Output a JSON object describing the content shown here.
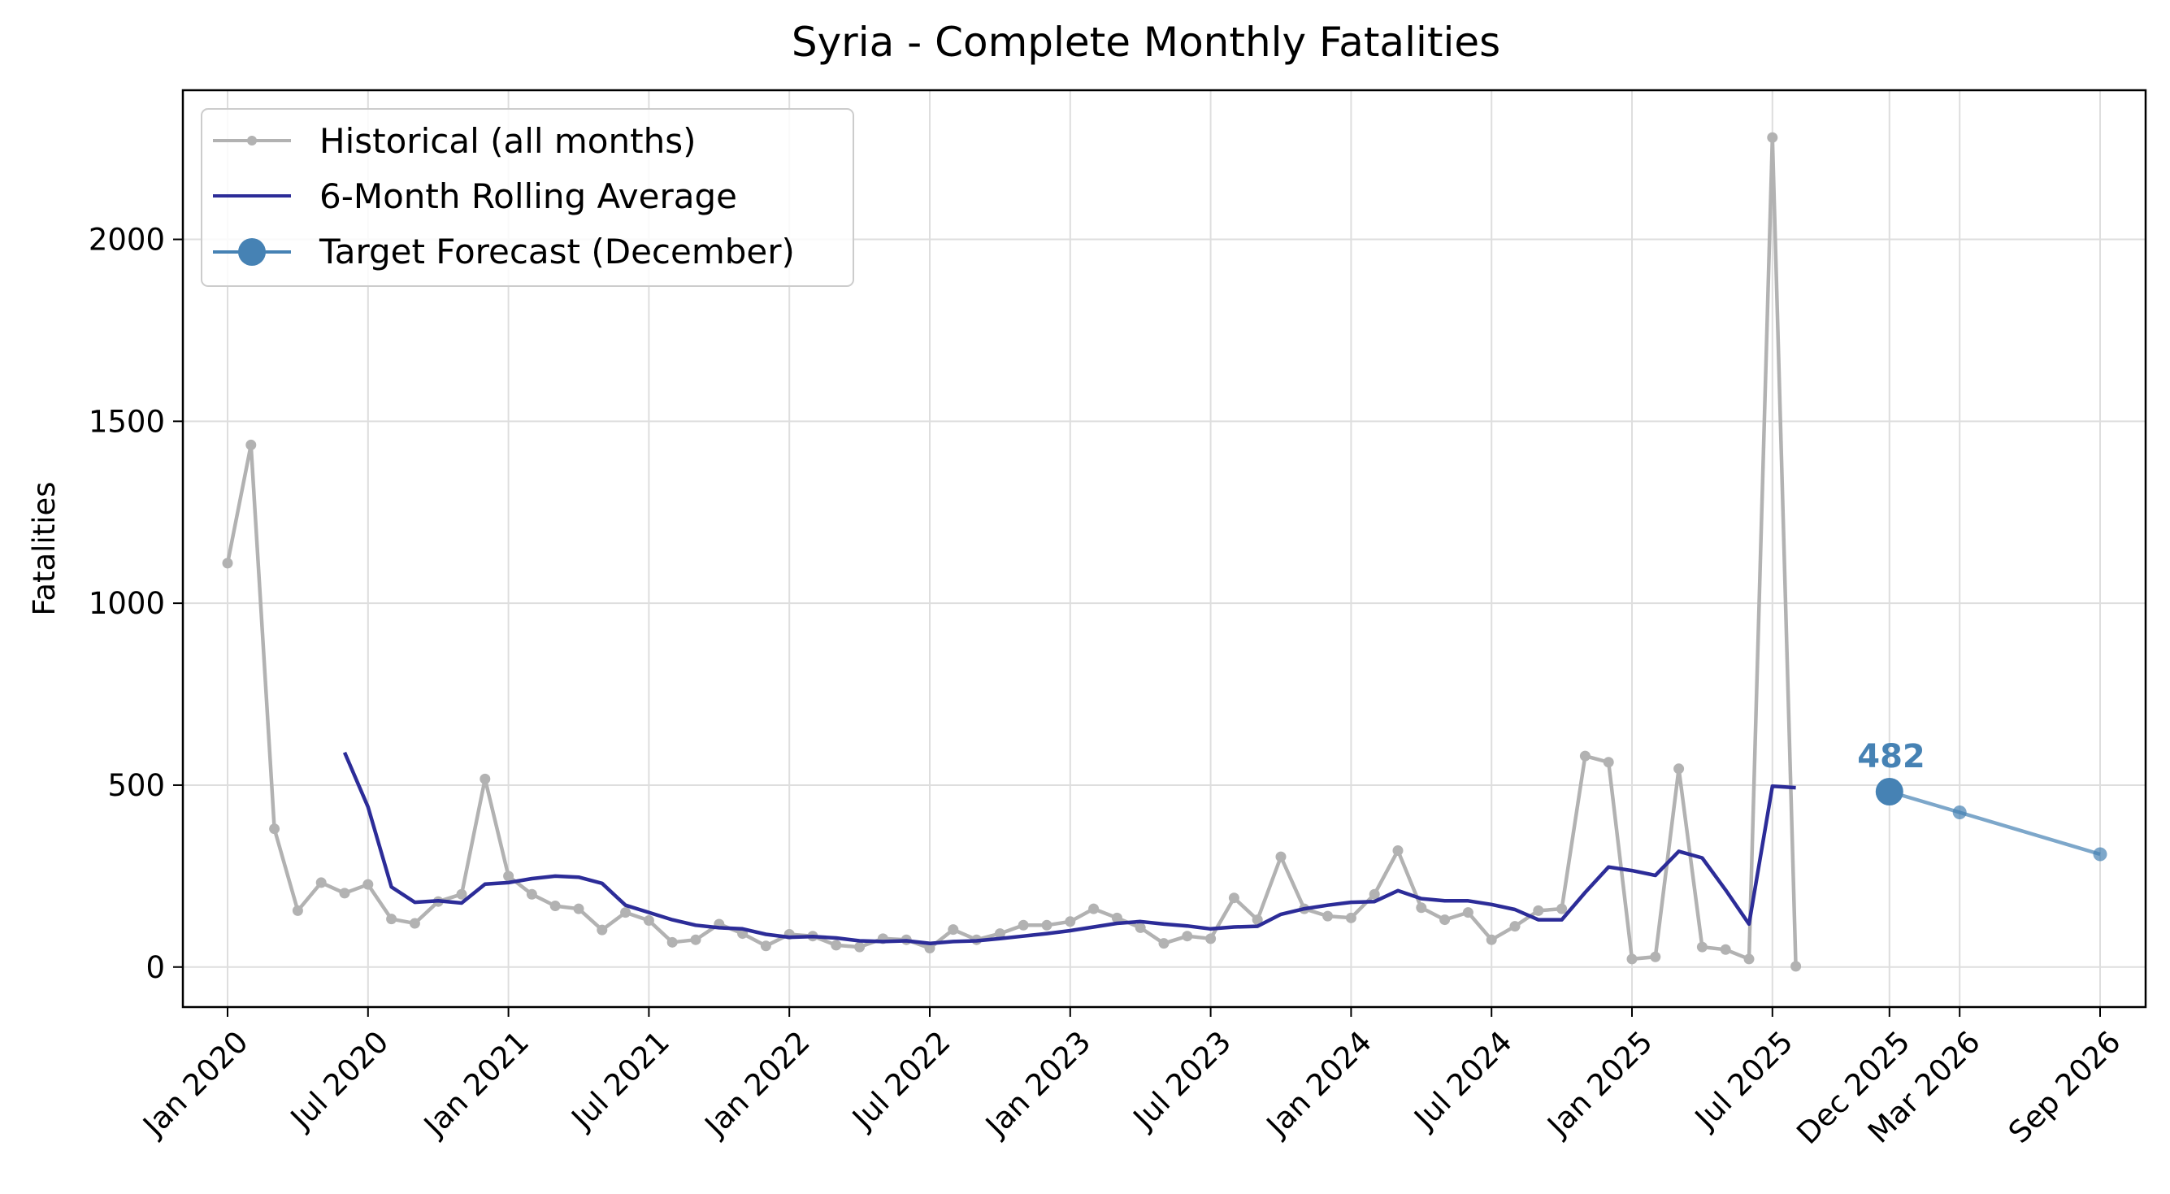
{
  "chart_data": {
    "type": "line",
    "title": "Syria - Complete Monthly Fatalities",
    "xlabel": "",
    "ylabel": "Fatalities",
    "ylim": [
      -110,
      2410
    ],
    "yticks": [
      0,
      500,
      1000,
      1500,
      2000
    ],
    "xticks": [
      {
        "date": "2020-01",
        "label": "Jan 2020"
      },
      {
        "date": "2020-07",
        "label": "Jul 2020"
      },
      {
        "date": "2021-01",
        "label": "Jan 2021"
      },
      {
        "date": "2021-07",
        "label": "Jul 2021"
      },
      {
        "date": "2022-01",
        "label": "Jan 2022"
      },
      {
        "date": "2022-07",
        "label": "Jul 2022"
      },
      {
        "date": "2023-01",
        "label": "Jan 2023"
      },
      {
        "date": "2023-07",
        "label": "Jul 2023"
      },
      {
        "date": "2024-01",
        "label": "Jan 2024"
      },
      {
        "date": "2024-07",
        "label": "Jul 2024"
      },
      {
        "date": "2025-01",
        "label": "Jan 2025"
      },
      {
        "date": "2025-07",
        "label": "Jul 2025"
      },
      {
        "date": "2025-12",
        "label": "Dec 2025"
      },
      {
        "date": "2026-03",
        "label": "Mar 2026"
      },
      {
        "date": "2026-09",
        "label": "Sep 2026"
      }
    ],
    "grid": true,
    "legend_position": "top-left",
    "series": [
      {
        "name": "Historical (all months)",
        "color": "#b2b2b2",
        "style": "line-with-dots",
        "points": [
          [
            "2020-01",
            1110
          ],
          [
            "2020-02",
            1435
          ],
          [
            "2020-03",
            380
          ],
          [
            "2020-04",
            155
          ],
          [
            "2020-05",
            232
          ],
          [
            "2020-06",
            203
          ],
          [
            "2020-07",
            227
          ],
          [
            "2020-08",
            132
          ],
          [
            "2020-09",
            120
          ],
          [
            "2020-10",
            180
          ],
          [
            "2020-11",
            200
          ],
          [
            "2020-12",
            517
          ],
          [
            "2021-01",
            250
          ],
          [
            "2021-02",
            200
          ],
          [
            "2021-03",
            168
          ],
          [
            "2021-04",
            160
          ],
          [
            "2021-05",
            102
          ],
          [
            "2021-06",
            150
          ],
          [
            "2021-07",
            128
          ],
          [
            "2021-08",
            68
          ],
          [
            "2021-09",
            75
          ],
          [
            "2021-10",
            118
          ],
          [
            "2021-11",
            92
          ],
          [
            "2021-12",
            58
          ],
          [
            "2022-01",
            90
          ],
          [
            "2022-02",
            85
          ],
          [
            "2022-03",
            60
          ],
          [
            "2022-04",
            55
          ],
          [
            "2022-05",
            78
          ],
          [
            "2022-06",
            75
          ],
          [
            "2022-07",
            52
          ],
          [
            "2022-08",
            103
          ],
          [
            "2022-09",
            75
          ],
          [
            "2022-10",
            92
          ],
          [
            "2022-11",
            115
          ],
          [
            "2022-12",
            115
          ],
          [
            "2023-01",
            125
          ],
          [
            "2023-02",
            160
          ],
          [
            "2023-03",
            135
          ],
          [
            "2023-04",
            108
          ],
          [
            "2023-05",
            65
          ],
          [
            "2023-06",
            85
          ],
          [
            "2023-07",
            78
          ],
          [
            "2023-08",
            190
          ],
          [
            "2023-09",
            130
          ],
          [
            "2023-10",
            303
          ],
          [
            "2023-11",
            160
          ],
          [
            "2023-12",
            140
          ],
          [
            "2024-01",
            135
          ],
          [
            "2024-02",
            200
          ],
          [
            "2024-03",
            320
          ],
          [
            "2024-04",
            163
          ],
          [
            "2024-05",
            130
          ],
          [
            "2024-06",
            150
          ],
          [
            "2024-07",
            75
          ],
          [
            "2024-08",
            112
          ],
          [
            "2024-09",
            155
          ],
          [
            "2024-10",
            160
          ],
          [
            "2024-11",
            580
          ],
          [
            "2024-12",
            563
          ],
          [
            "2025-01",
            22
          ],
          [
            "2025-02",
            28
          ],
          [
            "2025-03",
            545
          ],
          [
            "2025-04",
            55
          ],
          [
            "2025-05",
            48
          ],
          [
            "2025-06",
            22
          ],
          [
            "2025-07",
            2280
          ],
          [
            "2025-08",
            2
          ]
        ]
      },
      {
        "name": "6-Month Rolling Average",
        "color": "#2c2c98",
        "style": "line",
        "points": [
          [
            "2020-06",
            590
          ],
          [
            "2020-07",
            440
          ],
          [
            "2020-08",
            220
          ],
          [
            "2020-09",
            178
          ],
          [
            "2020-10",
            182
          ],
          [
            "2020-11",
            176
          ],
          [
            "2020-12",
            228
          ],
          [
            "2021-01",
            232
          ],
          [
            "2021-02",
            243
          ],
          [
            "2021-03",
            250
          ],
          [
            "2021-04",
            247
          ],
          [
            "2021-05",
            230
          ],
          [
            "2021-06",
            170
          ],
          [
            "2021-07",
            150
          ],
          [
            "2021-08",
            130
          ],
          [
            "2021-09",
            115
          ],
          [
            "2021-10",
            108
          ],
          [
            "2021-11",
            105
          ],
          [
            "2021-12",
            90
          ],
          [
            "2022-01",
            82
          ],
          [
            "2022-02",
            84
          ],
          [
            "2022-03",
            80
          ],
          [
            "2022-04",
            72
          ],
          [
            "2022-05",
            70
          ],
          [
            "2022-06",
            72
          ],
          [
            "2022-07",
            65
          ],
          [
            "2022-08",
            70
          ],
          [
            "2022-09",
            72
          ],
          [
            "2022-10",
            78
          ],
          [
            "2022-11",
            85
          ],
          [
            "2022-12",
            92
          ],
          [
            "2023-01",
            100
          ],
          [
            "2023-02",
            110
          ],
          [
            "2023-03",
            120
          ],
          [
            "2023-04",
            125
          ],
          [
            "2023-05",
            118
          ],
          [
            "2023-06",
            113
          ],
          [
            "2023-07",
            105
          ],
          [
            "2023-08",
            110
          ],
          [
            "2023-09",
            112
          ],
          [
            "2023-10",
            145
          ],
          [
            "2023-11",
            160
          ],
          [
            "2023-12",
            170
          ],
          [
            "2024-01",
            178
          ],
          [
            "2024-02",
            180
          ],
          [
            "2024-03",
            210
          ],
          [
            "2024-04",
            188
          ],
          [
            "2024-05",
            182
          ],
          [
            "2024-06",
            182
          ],
          [
            "2024-07",
            172
          ],
          [
            "2024-08",
            158
          ],
          [
            "2024-09",
            130
          ],
          [
            "2024-10",
            130
          ],
          [
            "2024-11",
            205
          ],
          [
            "2024-12",
            275
          ],
          [
            "2025-01",
            265
          ],
          [
            "2025-02",
            252
          ],
          [
            "2025-03",
            318
          ],
          [
            "2025-04",
            300
          ],
          [
            "2025-05",
            212
          ],
          [
            "2025-06",
            118
          ],
          [
            "2025-07",
            497
          ],
          [
            "2025-08",
            493
          ]
        ]
      },
      {
        "name": "Target Forecast (December)",
        "color": "#4682b4",
        "style": "marker",
        "points": [
          [
            "2025-12",
            482
          ]
        ]
      },
      {
        "name": "",
        "color": "#4682b4",
        "style": "faded-line",
        "points": [
          [
            "2025-12",
            482
          ],
          [
            "2026-03",
            425
          ],
          [
            "2026-09",
            310
          ]
        ]
      }
    ],
    "annotations": [
      {
        "text": "482",
        "x": "2025-12",
        "y": 482,
        "color": "#4682b4"
      }
    ]
  }
}
